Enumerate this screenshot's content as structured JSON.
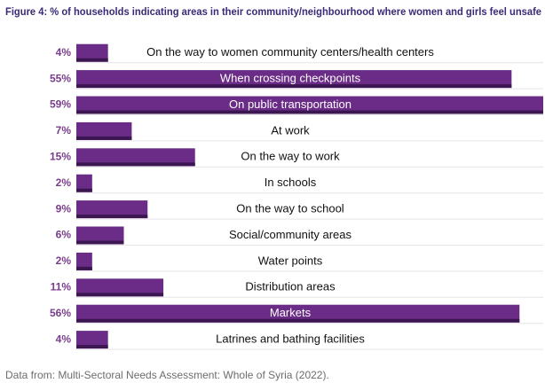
{
  "chart_data": {
    "type": "bar",
    "orientation": "horizontal",
    "title": "Figure 4: % of households indicating areas in their community/neighbourhood where women and girls feel unsafe",
    "categories": [
      "On the way to women community centers/health centers",
      "When crossing checkpoints",
      "On public transportation",
      "At work",
      "On the way to work",
      "In schools",
      "On the way to school",
      "Social/community areas",
      "Water points",
      "Distribution areas",
      "Markets",
      "Latrines and bathing facilities"
    ],
    "values": [
      4,
      55,
      59,
      7,
      15,
      2,
      9,
      6,
      2,
      11,
      56,
      4
    ],
    "value_labels": [
      "4%",
      "55%",
      "59%",
      "7%",
      "15%",
      "2%",
      "9%",
      "6%",
      "2%",
      "11%",
      "56%",
      "4%"
    ],
    "color": "#6a2c86",
    "source": "Data from: Multi-Sectoral Needs Assessment: Whole of Syria (2022)."
  }
}
